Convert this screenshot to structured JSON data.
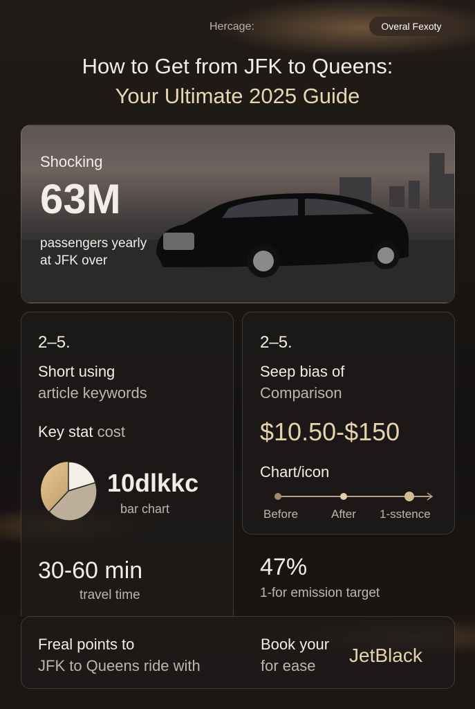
{
  "header": {
    "eyebrow": "Hercage:",
    "badge": "Overal Fexoty",
    "title_line1": "How to Get from JFK to Queens:",
    "title_line2": "Your Ultimate 2025 Guide"
  },
  "hero": {
    "label": "Shocking",
    "stat": "63M",
    "caption_line1": "passengers yearly",
    "caption_line2": "at JFK over"
  },
  "left_card": {
    "number": "2–5.",
    "heading_line1": "Short using",
    "heading_line2": "article keywords",
    "key_stat_label": "Key stat",
    "key_stat_value": "cost",
    "chart_value": "10dlkkc",
    "chart_caption": "bar chart",
    "time_value": "30-60 min",
    "time_caption": "travel time"
  },
  "right_card": {
    "number": "2–5.",
    "heading_line1": "Seep bias of",
    "heading_line2": "Comparison",
    "price_range": "$10.50-$150",
    "chart_label": "Chart/icon",
    "timeline": [
      "Before",
      "After",
      "1-sstence"
    ],
    "percent": "47%",
    "percent_caption": "1-for emission target"
  },
  "footer": {
    "left_line1": "Freal points to",
    "left_line2": "JFK to Queens ride with",
    "right_line1": "Book your",
    "right_line2": "for ease",
    "brand": "JetBlack"
  },
  "colors": {
    "accent_gold": "#e6d3ad",
    "background": "#1a1614"
  }
}
